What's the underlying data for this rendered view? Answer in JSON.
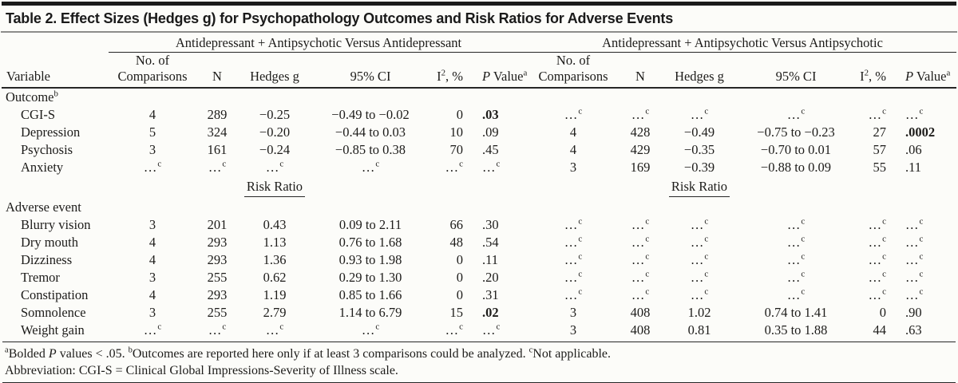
{
  "title": "Table 2. Effect Sizes (Hedges g) for Psychopathology Outcomes and Risk Ratios for Adverse Events",
  "spanners": {
    "left": "Antidepressant + Antipsychotic Versus Antidepressant",
    "right": "Antidepressant + Antipsychotic Versus Antipsychotic"
  },
  "columns": {
    "variable": "Variable",
    "no_of": "No. of",
    "comparisons": "Comparisons",
    "n": "N",
    "hedges_g": "Hedges g",
    "ci": "95% CI",
    "i2_base": "I",
    "i2_sup": "2",
    "i2_rest": ", %",
    "p_italic": "P",
    "p_rest": " Value",
    "p_sup": "a"
  },
  "risk_ratio_label": "Risk Ratio",
  "na_cell": {
    "v": "…",
    "sup": "c"
  },
  "rows": [
    {
      "section": "Outcome",
      "sup": "b"
    },
    {
      "label": "CGI-S",
      "left": [
        "4",
        "289",
        "−0.25",
        "−0.49 to −0.02",
        "0",
        {
          "v": ".03",
          "bold": true
        }
      ],
      "right": "na"
    },
    {
      "label": "Depression",
      "left": [
        "5",
        "324",
        "−0.20",
        "−0.44 to 0.03",
        "10",
        ".09"
      ],
      "right": [
        "4",
        "428",
        "−0.49",
        "−0.75 to −0.23",
        "27",
        {
          "v": ".0002",
          "bold": true
        }
      ]
    },
    {
      "label": "Psychosis",
      "left": [
        "3",
        "161",
        "−0.24",
        "−0.85 to 0.38",
        "70",
        ".45"
      ],
      "right": [
        "4",
        "429",
        "−0.35",
        "−0.70 to 0.01",
        "57",
        ".06"
      ]
    },
    {
      "label": "Anxiety",
      "left": "na",
      "right": [
        "3",
        "169",
        "−0.39",
        "−0.88 to 0.09",
        "55",
        ".11"
      ]
    },
    {
      "subheader": true
    },
    {
      "section": "Adverse event"
    },
    {
      "label": "Blurry vision",
      "left": [
        "3",
        "201",
        "0.43",
        "0.09 to 2.11",
        "66",
        ".30"
      ],
      "right": "na"
    },
    {
      "label": "Dry mouth",
      "left": [
        "4",
        "293",
        "1.13",
        "0.76 to 1.68",
        "48",
        ".54"
      ],
      "right": "na"
    },
    {
      "label": "Dizziness",
      "left": [
        "4",
        "293",
        "1.36",
        "0.93 to 1.98",
        "0",
        ".11"
      ],
      "right": "na"
    },
    {
      "label": "Tremor",
      "left": [
        "3",
        "255",
        "0.62",
        "0.29 to 1.30",
        "0",
        ".20"
      ],
      "right": "na"
    },
    {
      "label": "Constipation",
      "left": [
        "4",
        "293",
        "1.19",
        "0.85 to 1.66",
        "0",
        ".31"
      ],
      "right": "na"
    },
    {
      "label": "Somnolence",
      "left": [
        "3",
        "255",
        "2.79",
        "1.14 to 6.79",
        "15",
        {
          "v": ".02",
          "bold": true
        }
      ],
      "right": [
        "3",
        "408",
        "1.02",
        "0.74 to 1.41",
        "0",
        ".90"
      ]
    },
    {
      "label": "Weight gain",
      "left": "na",
      "right": [
        "3",
        "408",
        "0.81",
        "0.35 to 1.88",
        "44",
        ".63"
      ]
    }
  ],
  "footnotes": {
    "line1": [
      {
        "sup": "a"
      },
      {
        "t": "Bolded "
      },
      {
        "i": "P"
      },
      {
        "t": " values < .05.  "
      },
      {
        "sup": "b"
      },
      {
        "t": "Outcomes are reported here only if at least 3 comparisons could be analyzed.  "
      },
      {
        "sup": "c"
      },
      {
        "t": "Not applicable."
      }
    ],
    "abbreviation": "Abbreviation: CGI-S = Clinical Global Impressions-Severity of Illness scale."
  }
}
